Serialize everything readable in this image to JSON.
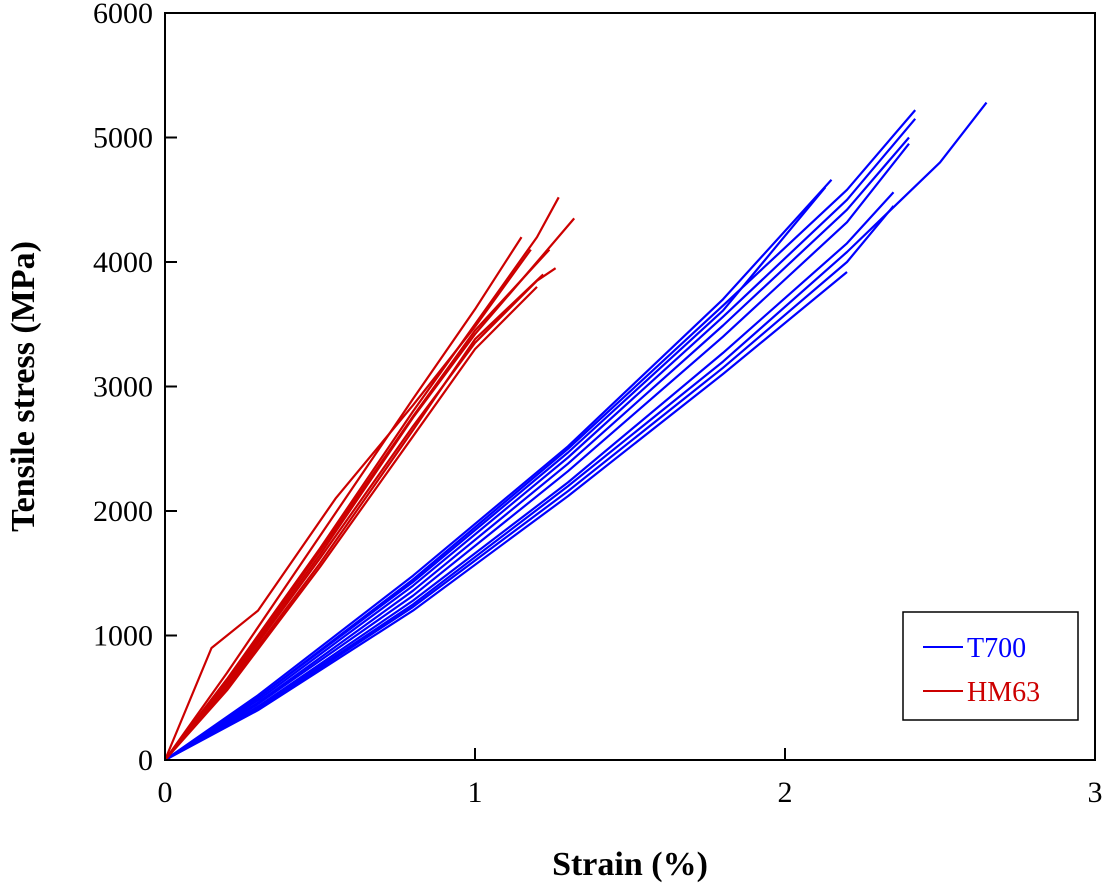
{
  "chart_data": {
    "type": "line",
    "title": "",
    "xlabel": "Strain (%)",
    "ylabel": "Tensile stress (MPa)",
    "xlim": [
      0,
      3
    ],
    "ylim": [
      0,
      6000
    ],
    "xticks": [
      0,
      1,
      2,
      3
    ],
    "yticks": [
      0,
      1000,
      2000,
      3000,
      4000,
      5000,
      6000
    ],
    "grid": false,
    "legend_position": "bottom-right",
    "series": [
      {
        "name": "T700",
        "color": "#0000ff",
        "group": "T700",
        "x": [
          0,
          0.3,
          0.8,
          1.3,
          1.8,
          2.2,
          2.42
        ],
        "y": [
          0,
          500,
          1450,
          2500,
          3650,
          4580,
          5220
        ]
      },
      {
        "name": "T700",
        "color": "#0000ff",
        "group": "T700",
        "x": [
          0,
          0.3,
          0.8,
          1.3,
          1.8,
          2.2,
          2.42
        ],
        "y": [
          0,
          480,
          1400,
          2430,
          3560,
          4500,
          5150
        ]
      },
      {
        "name": "T700",
        "color": "#0000ff",
        "group": "T700",
        "x": [
          0,
          0.3,
          0.8,
          1.3,
          1.8,
          2.2,
          2.4
        ],
        "y": [
          0,
          460,
          1360,
          2380,
          3490,
          4420,
          5000
        ]
      },
      {
        "name": "T700",
        "color": "#0000ff",
        "group": "T700",
        "x": [
          0,
          0.3,
          0.8,
          1.3,
          1.8,
          2.2,
          2.4
        ],
        "y": [
          0,
          450,
          1320,
          2320,
          3400,
          4320,
          4950
        ]
      },
      {
        "name": "T700",
        "color": "#0000ff",
        "group": "T700",
        "x": [
          0,
          0.3,
          0.8,
          1.3,
          1.8,
          2.15
        ],
        "y": [
          0,
          520,
          1480,
          2520,
          3700,
          4660
        ]
      },
      {
        "name": "T700",
        "color": "#0000ff",
        "group": "T700",
        "x": [
          0,
          0.3,
          0.8,
          1.3,
          1.8,
          2.13
        ],
        "y": [
          0,
          500,
          1430,
          2470,
          3610,
          4600
        ]
      },
      {
        "name": "T700",
        "color": "#0000ff",
        "group": "T700",
        "x": [
          0,
          0.3,
          0.8,
          1.3,
          1.8,
          2.2,
          2.35
        ],
        "y": [
          0,
          430,
          1280,
          2230,
          3270,
          4150,
          4560
        ]
      },
      {
        "name": "T700",
        "color": "#0000ff",
        "group": "T700",
        "x": [
          0,
          0.3,
          0.8,
          1.3,
          1.8,
          2.2,
          2.5,
          2.65
        ],
        "y": [
          0,
          420,
          1250,
          2200,
          3200,
          4080,
          4800,
          5280
        ]
      },
      {
        "name": "T700",
        "color": "#0000ff",
        "group": "T700",
        "x": [
          0,
          0.3,
          0.8,
          1.3,
          1.8,
          2.2,
          2.35
        ],
        "y": [
          0,
          410,
          1230,
          2160,
          3150,
          4000,
          4450
        ]
      },
      {
        "name": "T700",
        "color": "#0000ff",
        "group": "T700",
        "x": [
          0,
          0.3,
          0.8,
          1.3,
          1.8,
          2.2
        ],
        "y": [
          0,
          400,
          1200,
          2120,
          3100,
          3920
        ]
      },
      {
        "name": "HM63",
        "color": "#cc0000",
        "group": "HM63",
        "x": [
          0,
          0.2,
          0.5,
          0.8,
          1.0,
          1.2,
          1.27
        ],
        "y": [
          0,
          650,
          1700,
          2800,
          3500,
          4200,
          4520
        ]
      },
      {
        "name": "HM63",
        "color": "#cc0000",
        "group": "HM63",
        "x": [
          0,
          0.2,
          0.5,
          0.8,
          1.0,
          1.2,
          1.32
        ],
        "y": [
          0,
          620,
          1650,
          2750,
          3420,
          4000,
          4350
        ]
      },
      {
        "name": "HM63",
        "color": "#cc0000",
        "group": "HM63",
        "x": [
          0,
          0.2,
          0.5,
          0.8,
          1.0,
          1.2,
          1.26
        ],
        "y": [
          0,
          600,
          1620,
          2680,
          3350,
          3850,
          3950
        ]
      },
      {
        "name": "HM63",
        "color": "#cc0000",
        "group": "HM63",
        "x": [
          0,
          0.2,
          0.5,
          0.8,
          1.0,
          1.15
        ],
        "y": [
          0,
          700,
          1800,
          2900,
          3620,
          4200
        ]
      },
      {
        "name": "HM63",
        "color": "#cc0000",
        "group": "HM63",
        "x": [
          0,
          0.15,
          0.3,
          0.55,
          0.8,
          1.0,
          1.18
        ],
        "y": [
          0,
          900,
          1200,
          2100,
          2850,
          3480,
          4100
        ]
      },
      {
        "name": "HM63",
        "color": "#cc0000",
        "group": "HM63",
        "x": [
          0,
          0.2,
          0.5,
          0.8,
          1.0,
          1.2
        ],
        "y": [
          0,
          560,
          1550,
          2600,
          3300,
          3800
        ]
      },
      {
        "name": "HM63",
        "color": "#cc0000",
        "group": "HM63",
        "x": [
          0,
          0.2,
          0.5,
          0.8,
          1.0,
          1.22
        ],
        "y": [
          0,
          580,
          1580,
          2650,
          3380,
          3900
        ]
      },
      {
        "name": "HM63",
        "color": "#cc0000",
        "group": "HM63",
        "x": [
          0,
          0.2,
          0.5,
          0.8,
          1.0,
          1.24
        ],
        "y": [
          0,
          640,
          1680,
          2760,
          3450,
          4100
        ]
      }
    ],
    "legend": [
      {
        "label": "T700",
        "color": "#0000ff"
      },
      {
        "label": "HM63",
        "color": "#cc0000"
      }
    ]
  }
}
